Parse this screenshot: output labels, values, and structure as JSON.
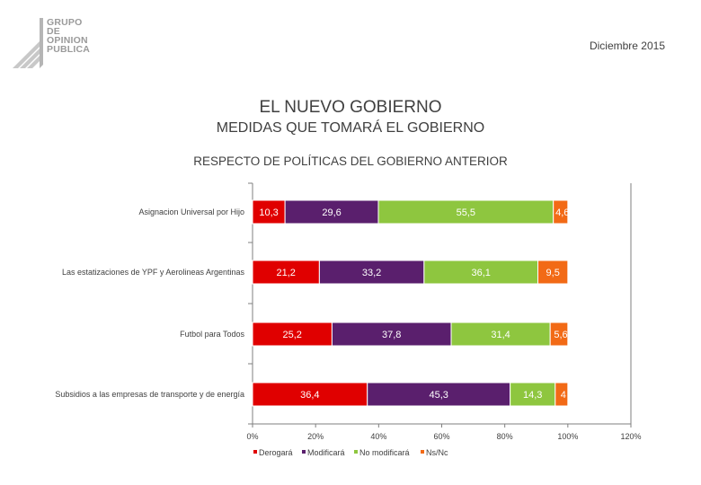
{
  "header": {
    "logo_lines": [
      "GRUPO",
      "DE",
      "OPINION",
      "PUBLICA"
    ],
    "date": "Diciembre 2015",
    "title": "EL NUEVO GOBIERNO",
    "subtitle": "MEDIDAS QUE TOMARÁ EL GOBIERNO",
    "section": "RESPECTO DE POLÍTICAS DEL GOBIERNO ANTERIOR"
  },
  "chart_data": {
    "type": "bar",
    "orientation": "horizontal",
    "stacked": true,
    "categories": [
      "Asignacion Universal por Hijo",
      "Las estatizaciones de YPF y Aerolineas Argentinas",
      "Futbol para Todos",
      "Subsidios a las empresas de transporte y de energía"
    ],
    "series": [
      {
        "name": "Derogará",
        "color": "#e00000",
        "values": [
          10.3,
          21.2,
          25.2,
          36.4
        ],
        "labels": [
          "10,3",
          "21,2",
          "25,2",
          "36,4"
        ]
      },
      {
        "name": "Modificará",
        "color": "#5a1f6d",
        "values": [
          29.6,
          33.2,
          37.8,
          45.3
        ],
        "labels": [
          "29,6",
          "33,2",
          "37,8",
          "45,3"
        ]
      },
      {
        "name": "No modificará",
        "color": "#8ec63f",
        "values": [
          55.5,
          36.1,
          31.4,
          14.3
        ],
        "labels": [
          "55,5",
          "36,1",
          "31,4",
          "14,3"
        ]
      },
      {
        "name": "Ns/Nc",
        "color": "#f26a16",
        "values": [
          4.6,
          9.5,
          5.6,
          4.0
        ],
        "labels": [
          "4,6",
          "9,5",
          "5,6",
          "4"
        ]
      }
    ],
    "xlim": [
      0,
      120
    ],
    "xticks": [
      0,
      20,
      40,
      60,
      80,
      100,
      120
    ],
    "xtick_labels": [
      "0%",
      "20%",
      "40%",
      "60%",
      "80%",
      "100%",
      "120%"
    ],
    "legend_position": "bottom"
  }
}
